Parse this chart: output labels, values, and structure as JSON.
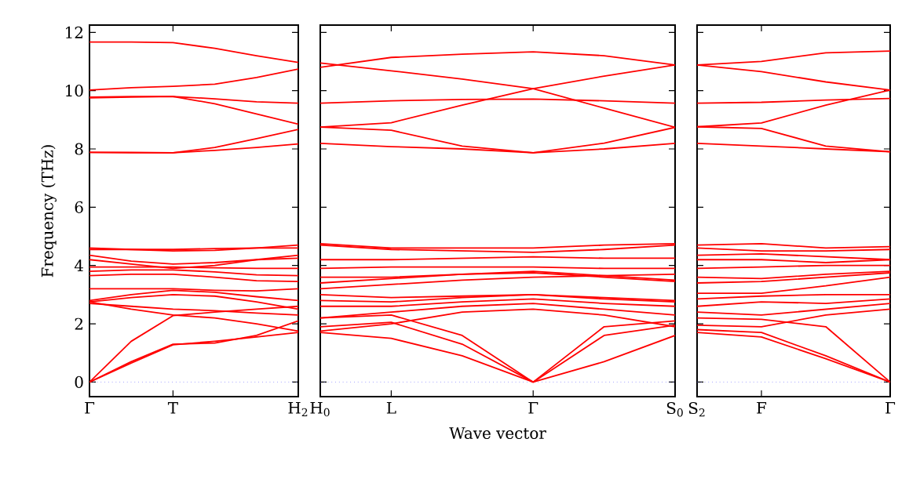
{
  "chart_data": [
    {
      "type": "line",
      "ylabel": "Frequency (THz)",
      "ylim": [
        -0.5,
        12.25
      ],
      "yticks": [
        0,
        2,
        4,
        6,
        8,
        10,
        12
      ],
      "categories": [
        "Γ",
        null,
        "T",
        null,
        null,
        "H$_{2}$"
      ],
      "ref_lines": [
        {
          "axis": "y",
          "value": 0,
          "color": "#7070ff",
          "line_style": "dotted"
        }
      ],
      "series": [
        {
          "color": "#ff0000",
          "values": [
            11.67,
            11.67,
            11.65,
            11.45,
            11.2,
            10.97
          ]
        },
        {
          "color": "#ff0000",
          "values": [
            10.02,
            10.1,
            10.15,
            10.22,
            10.45,
            10.74
          ]
        },
        {
          "color": "#ff0000",
          "values": [
            9.75,
            9.78,
            9.8,
            9.72,
            9.62,
            9.57
          ]
        },
        {
          "color": "#ff0000",
          "values": [
            9.78,
            9.8,
            9.8,
            9.55,
            9.2,
            8.85
          ]
        },
        {
          "color": "#ff0000",
          "values": [
            7.88,
            7.88,
            7.87,
            8.05,
            8.35,
            8.67
          ]
        },
        {
          "color": "#ff0000",
          "values": [
            7.88,
            7.87,
            7.87,
            7.95,
            8.05,
            8.17
          ]
        },
        {
          "color": "#ff0000",
          "values": [
            0,
            0.7,
            1.3,
            1.34,
            1.6,
            2.1
          ]
        },
        {
          "color": "#ff0000",
          "values": [
            0,
            0.65,
            1.28,
            1.4,
            1.55,
            1.7
          ]
        },
        {
          "color": "#ff0000",
          "values": [
            0,
            1.4,
            2.28,
            2.4,
            2.5,
            2.6
          ]
        },
        {
          "color": "#ff0000",
          "values": [
            2.75,
            2.5,
            2.3,
            2.2,
            2.0,
            1.75
          ]
        },
        {
          "color": "#ff0000",
          "values": [
            2.7,
            2.6,
            2.5,
            2.45,
            2.37,
            2.3
          ]
        },
        {
          "color": "#ff0000",
          "values": [
            2.75,
            2.9,
            3.0,
            2.95,
            2.75,
            2.5
          ]
        },
        {
          "color": "#ff0000",
          "values": [
            2.8,
            3.0,
            3.15,
            3.08,
            2.93,
            2.8
          ]
        },
        {
          "color": "#ff0000",
          "values": [
            3.2,
            3.2,
            3.2,
            3.15,
            3.13,
            3.2
          ]
        },
        {
          "color": "#ff0000",
          "values": [
            3.65,
            3.7,
            3.7,
            3.6,
            3.48,
            3.45
          ]
        },
        {
          "color": "#ff0000",
          "values": [
            3.8,
            3.85,
            3.85,
            3.78,
            3.68,
            3.65
          ]
        },
        {
          "color": "#ff0000",
          "values": [
            3.95,
            3.95,
            3.95,
            3.92,
            3.9,
            3.9
          ]
        },
        {
          "color": "#ff0000",
          "values": [
            4.35,
            4.15,
            4.05,
            4.1,
            4.2,
            4.25
          ]
        },
        {
          "color": "#ff0000",
          "values": [
            4.2,
            4.05,
            3.9,
            4.0,
            4.2,
            4.35
          ]
        },
        {
          "color": "#ff0000",
          "values": [
            4.6,
            4.55,
            4.5,
            4.52,
            4.6,
            4.7
          ]
        },
        {
          "color": "#ff0000",
          "values": [
            4.55,
            4.55,
            4.55,
            4.58,
            4.6,
            4.6
          ]
        }
      ]
    },
    {
      "type": "line",
      "xlabel": "Wave vector",
      "tick_labels": "x",
      "ylim": [
        -0.5,
        12.25
      ],
      "yticks": [
        0,
        2,
        4,
        6,
        8,
        10,
        12
      ],
      "categories": [
        "H$_{0}$",
        "L",
        null,
        "Γ",
        null,
        "S$_{0}$"
      ],
      "ref_lines": [
        {
          "axis": "y",
          "value": 0,
          "color": "#7070ff",
          "line_style": "dotted"
        }
      ],
      "series": [
        {
          "color": "#ff0000",
          "values": [
            10.8,
            11.14,
            11.25,
            11.33,
            11.2,
            10.88
          ]
        },
        {
          "color": "#ff0000",
          "values": [
            10.95,
            10.68,
            10.4,
            10.07,
            9.4,
            8.74
          ]
        },
        {
          "color": "#ff0000",
          "values": [
            9.57,
            9.65,
            9.7,
            9.71,
            9.65,
            9.57
          ]
        },
        {
          "color": "#ff0000",
          "values": [
            8.75,
            8.9,
            9.5,
            10.07,
            10.5,
            10.88
          ]
        },
        {
          "color": "#ff0000",
          "values": [
            8.75,
            8.64,
            8.1,
            7.87,
            8.2,
            8.74
          ]
        },
        {
          "color": "#ff0000",
          "values": [
            8.19,
            8.08,
            8.0,
            7.87,
            8.0,
            8.19
          ]
        },
        {
          "color": "#ff0000",
          "values": [
            1.7,
            1.5,
            0.9,
            0,
            0.7,
            1.6
          ]
        },
        {
          "color": "#ff0000",
          "values": [
            1.9,
            2.05,
            1.3,
            0,
            1.6,
            1.95
          ]
        },
        {
          "color": "#ff0000",
          "values": [
            2.2,
            2.3,
            1.6,
            0,
            1.9,
            2.1
          ]
        },
        {
          "color": "#ff0000",
          "values": [
            1.75,
            2.0,
            2.4,
            2.5,
            2.3,
            1.9
          ]
        },
        {
          "color": "#ff0000",
          "values": [
            2.2,
            2.4,
            2.6,
            2.7,
            2.5,
            2.3
          ]
        },
        {
          "color": "#ff0000",
          "values": [
            2.6,
            2.6,
            2.75,
            2.85,
            2.7,
            2.6
          ]
        },
        {
          "color": "#ff0000",
          "values": [
            2.8,
            2.75,
            2.9,
            3.0,
            2.9,
            2.8
          ]
        },
        {
          "color": "#ff0000",
          "values": [
            3.0,
            2.9,
            2.95,
            3.0,
            2.85,
            2.75
          ]
        },
        {
          "color": "#ff0000",
          "values": [
            3.2,
            3.35,
            3.5,
            3.6,
            3.65,
            3.7
          ]
        },
        {
          "color": "#ff0000",
          "values": [
            3.4,
            3.55,
            3.7,
            3.8,
            3.65,
            3.5
          ]
        },
        {
          "color": "#ff0000",
          "values": [
            3.6,
            3.6,
            3.7,
            3.75,
            3.6,
            3.45
          ]
        },
        {
          "color": "#ff0000",
          "values": [
            3.9,
            3.95,
            3.95,
            3.95,
            3.9,
            3.9
          ]
        },
        {
          "color": "#ff0000",
          "values": [
            4.2,
            4.2,
            4.25,
            4.3,
            4.25,
            4.25
          ]
        },
        {
          "color": "#ff0000",
          "values": [
            4.7,
            4.55,
            4.5,
            4.45,
            4.55,
            4.7
          ]
        },
        {
          "color": "#ff0000",
          "values": [
            4.75,
            4.6,
            4.6,
            4.6,
            4.7,
            4.75
          ]
        }
      ]
    },
    {
      "type": "line",
      "tick_labels": "x",
      "ylim": [
        -0.5,
        12.25
      ],
      "yticks": [
        0,
        2,
        4,
        6,
        8,
        10,
        12
      ],
      "categories": [
        "S$_{2}$",
        "F",
        null,
        "Γ"
      ],
      "ref_lines": [
        {
          "axis": "y",
          "value": 0,
          "color": "#7070ff",
          "line_style": "dotted"
        }
      ],
      "series": [
        {
          "color": "#ff0000",
          "values": [
            10.88,
            11.0,
            11.3,
            11.36
          ]
        },
        {
          "color": "#ff0000",
          "values": [
            10.88,
            10.65,
            10.3,
            10.02
          ]
        },
        {
          "color": "#ff0000",
          "values": [
            9.57,
            9.6,
            9.68,
            9.73
          ]
        },
        {
          "color": "#ff0000",
          "values": [
            8.76,
            8.89,
            9.5,
            10.02
          ]
        },
        {
          "color": "#ff0000",
          "values": [
            8.76,
            8.7,
            8.1,
            7.9
          ]
        },
        {
          "color": "#ff0000",
          "values": [
            8.19,
            8.1,
            8.0,
            7.9
          ]
        },
        {
          "color": "#ff0000",
          "values": [
            1.7,
            1.55,
            0.8,
            0
          ]
        },
        {
          "color": "#ff0000",
          "values": [
            1.8,
            1.7,
            0.9,
            0
          ]
        },
        {
          "color": "#ff0000",
          "values": [
            2.2,
            2.15,
            1.9,
            0
          ]
        },
        {
          "color": "#ff0000",
          "values": [
            1.95,
            1.9,
            2.3,
            2.5
          ]
        },
        {
          "color": "#ff0000",
          "values": [
            2.4,
            2.3,
            2.5,
            2.7
          ]
        },
        {
          "color": "#ff0000",
          "values": [
            2.6,
            2.75,
            2.7,
            2.85
          ]
        },
        {
          "color": "#ff0000",
          "values": [
            2.85,
            2.95,
            3.0,
            3.0
          ]
        },
        {
          "color": "#ff0000",
          "values": [
            3.05,
            3.05,
            3.3,
            3.6
          ]
        },
        {
          "color": "#ff0000",
          "values": [
            3.4,
            3.45,
            3.6,
            3.75
          ]
        },
        {
          "color": "#ff0000",
          "values": [
            3.6,
            3.55,
            3.7,
            3.8
          ]
        },
        {
          "color": "#ff0000",
          "values": [
            3.9,
            3.95,
            4.0,
            4.0
          ]
        },
        {
          "color": "#ff0000",
          "values": [
            4.2,
            4.2,
            4.1,
            4.2
          ]
        },
        {
          "color": "#ff0000",
          "values": [
            4.35,
            4.4,
            4.3,
            4.2
          ]
        },
        {
          "color": "#ff0000",
          "values": [
            4.6,
            4.5,
            4.5,
            4.55
          ]
        },
        {
          "color": "#ff0000",
          "values": [
            4.7,
            4.75,
            4.6,
            4.65
          ]
        }
      ]
    }
  ]
}
